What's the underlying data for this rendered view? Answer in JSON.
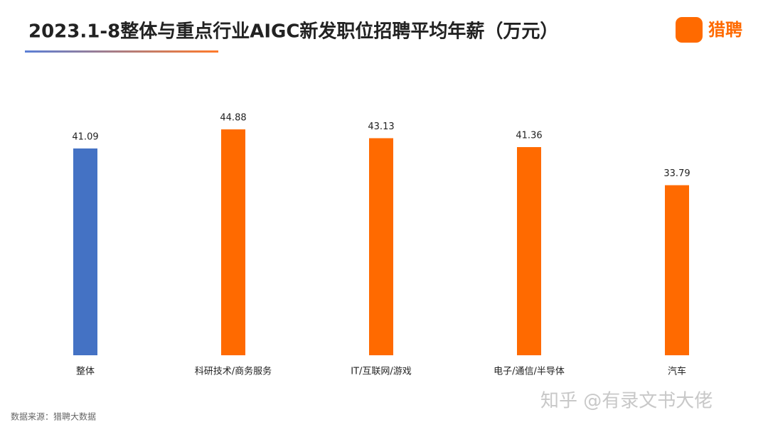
{
  "chart_data": {
    "type": "bar",
    "title": "2023.1-8整体与重点行业AIGC新发职位招聘平均年薪（万元）",
    "categories": [
      "整体",
      "科研技术/商务服务",
      "IT/互联网/游戏",
      "电子/通信/半导体",
      "汽车"
    ],
    "values": [
      41.09,
      44.88,
      43.13,
      41.36,
      33.79
    ],
    "colors": [
      "#4472c4",
      "#ff6a00",
      "#ff6a00",
      "#ff6a00",
      "#ff6a00"
    ],
    "ylim": [
      0,
      60
    ],
    "source": "数据来源：猎聘大数据",
    "logo": "猎聘",
    "watermark": "知乎 @有录文书大佬"
  }
}
